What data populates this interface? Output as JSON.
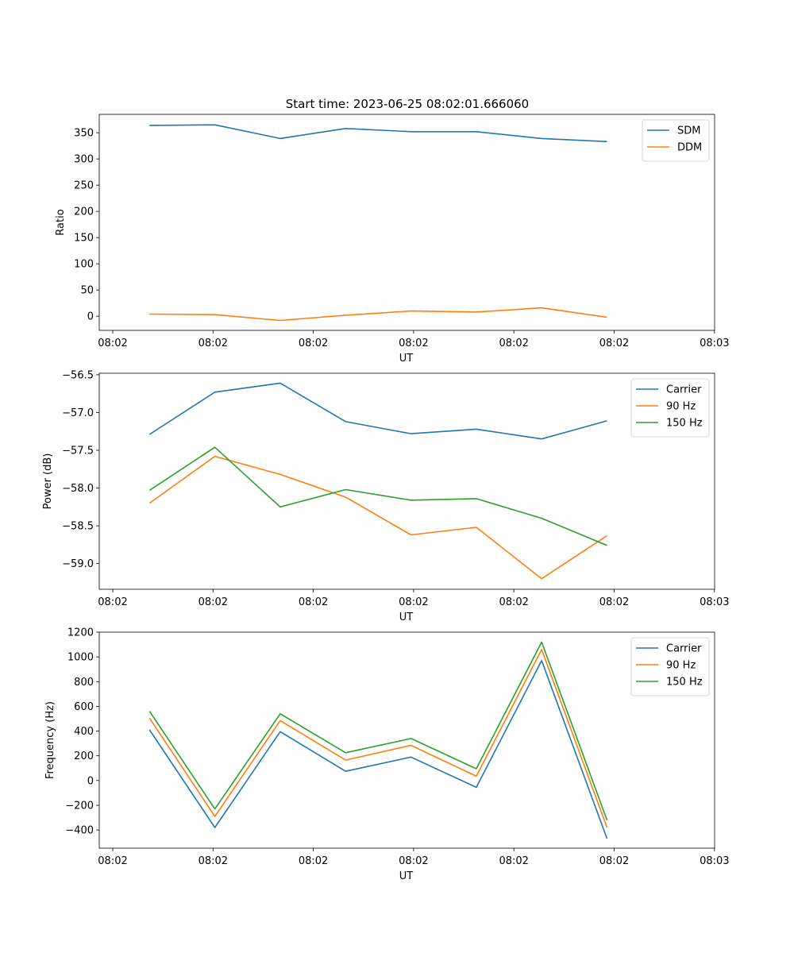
{
  "figure": {
    "title": "Start time: 2023-06-25 08:02:01.666060"
  },
  "colors": {
    "blue": "#1f77b4",
    "orange": "#ff7f0e",
    "green": "#2ca02c"
  },
  "chart_data": [
    {
      "type": "line",
      "id": "ratio",
      "title": "Start time: 2023-06-25 08:02:01.666060",
      "xlabel": "UT",
      "ylabel": "Ratio",
      "x_ticks": [
        "08:02",
        "08:02",
        "08:02",
        "08:02",
        "08:02",
        "08:02",
        "08:03"
      ],
      "xlim": [
        0,
        6.12
      ],
      "y_ticks": [
        0,
        50,
        100,
        150,
        200,
        250,
        300,
        350
      ],
      "ylim": [
        -27,
        385
      ],
      "legend": "top-right",
      "x": [
        0.5,
        1.15,
        1.8,
        2.45,
        3.1,
        3.75,
        4.4,
        5.05
      ],
      "series": [
        {
          "name": "SDM",
          "color": "#1f77b4",
          "values": [
            364,
            365,
            339,
            358,
            352,
            352,
            339,
            333
          ]
        },
        {
          "name": "DDM",
          "color": "#ff7f0e",
          "values": [
            4,
            3,
            -8,
            2,
            10,
            8,
            16,
            -2
          ]
        }
      ]
    },
    {
      "type": "line",
      "id": "power",
      "title": "",
      "xlabel": "UT",
      "ylabel": "Power (dB)",
      "x_ticks": [
        "08:02",
        "08:02",
        "08:02",
        "08:02",
        "08:02",
        "08:02",
        "08:03"
      ],
      "xlim": [
        0,
        6.12
      ],
      "y_ticks": [
        -59.0,
        -58.5,
        -58.0,
        -57.5,
        -57.0,
        -56.5
      ],
      "ylim": [
        -59.34,
        -56.48
      ],
      "legend": "top-right",
      "x": [
        0.5,
        1.15,
        1.8,
        2.45,
        3.1,
        3.75,
        4.4,
        5.05
      ],
      "series": [
        {
          "name": "Carrier",
          "color": "#1f77b4",
          "values": [
            -57.29,
            -56.73,
            -56.61,
            -57.12,
            -57.28,
            -57.22,
            -57.35,
            -57.11
          ]
        },
        {
          "name": "90 Hz",
          "color": "#ff7f0e",
          "values": [
            -58.2,
            -57.58,
            -57.82,
            -58.12,
            -58.62,
            -58.52,
            -59.2,
            -58.63
          ]
        },
        {
          "name": "150 Hz",
          "color": "#2ca02c",
          "values": [
            -58.03,
            -57.46,
            -58.25,
            -58.02,
            -58.16,
            -58.14,
            -58.4,
            -58.76
          ]
        }
      ]
    },
    {
      "type": "line",
      "id": "frequency",
      "title": "",
      "xlabel": "UT",
      "ylabel": "Frequency (Hz)",
      "x_ticks": [
        "08:02",
        "08:02",
        "08:02",
        "08:02",
        "08:02",
        "08:02",
        "08:03"
      ],
      "xlim": [
        0,
        6.12
      ],
      "y_ticks": [
        -400,
        -200,
        0,
        200,
        400,
        600,
        800,
        1000,
        1200
      ],
      "ylim": [
        -547,
        1200
      ],
      "legend": "top-right",
      "x": [
        0.5,
        1.15,
        1.8,
        2.45,
        3.1,
        3.75,
        4.4,
        5.05
      ],
      "series": [
        {
          "name": "Carrier",
          "color": "#1f77b4",
          "values": [
            410,
            -380,
            395,
            75,
            190,
            -55,
            970,
            -470
          ]
        },
        {
          "name": "90 Hz",
          "color": "#ff7f0e",
          "values": [
            505,
            -290,
            485,
            165,
            285,
            35,
            1060,
            -380
          ]
        },
        {
          "name": "150 Hz",
          "color": "#2ca02c",
          "values": [
            560,
            -230,
            540,
            225,
            340,
            95,
            1120,
            -320
          ]
        }
      ]
    }
  ]
}
